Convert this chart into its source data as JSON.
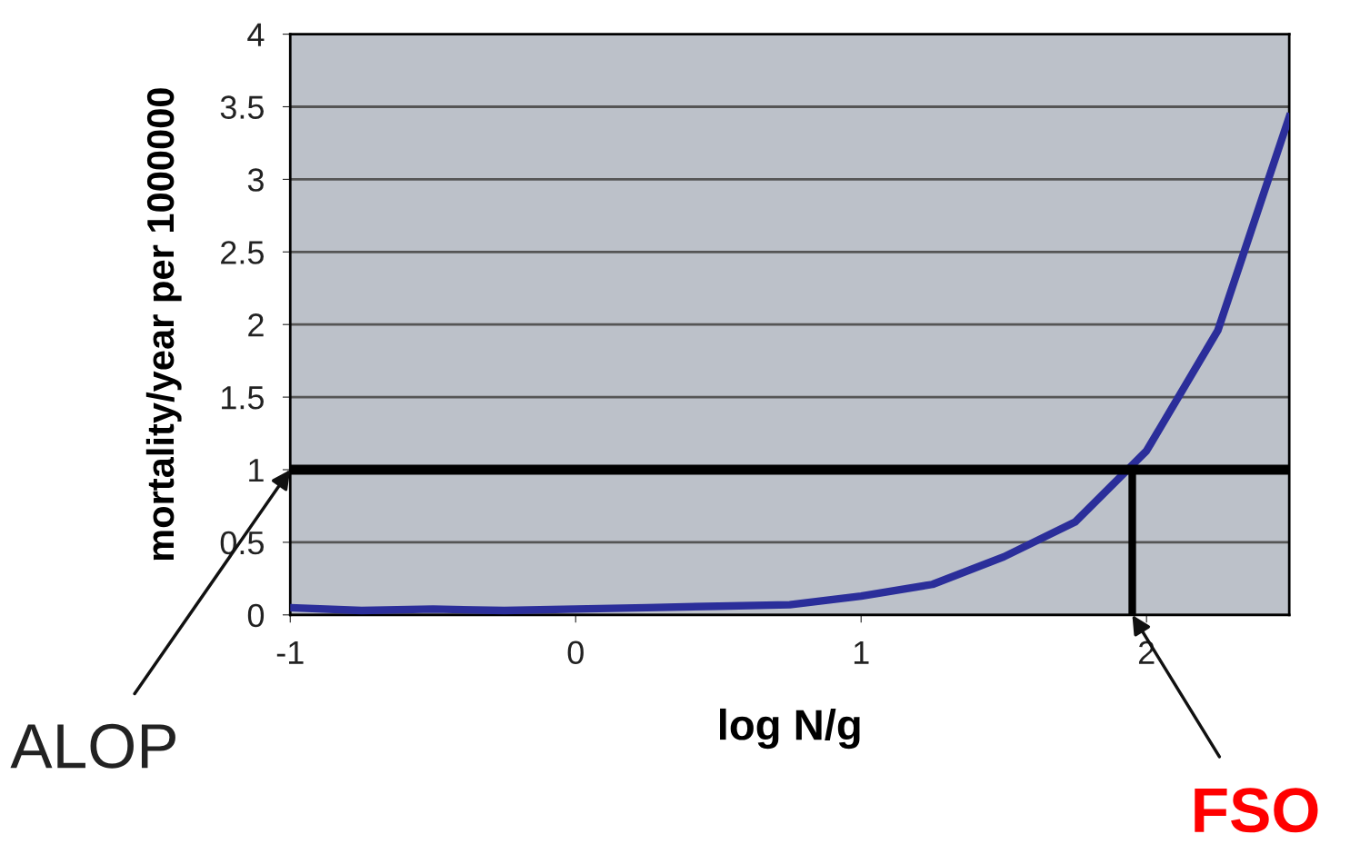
{
  "chart_data": {
    "type": "line",
    "xlabel": "log N/g",
    "ylabel": "mortality/year per 1000000",
    "xlim": [
      -1,
      2.5
    ],
    "ylim": [
      0,
      4
    ],
    "xticks": [
      -1,
      0,
      1,
      2
    ],
    "yticks": [
      0,
      0.5,
      1,
      1.5,
      2,
      2.5,
      3,
      3.5,
      4
    ],
    "grid": "y",
    "series": [
      {
        "color": "#2b2e9a",
        "x": [
          -1,
          -0.75,
          -0.5,
          -0.25,
          0,
          0.25,
          0.5,
          0.75,
          1,
          1.25,
          1.5,
          1.75,
          2,
          2.25,
          2.5
        ],
        "values": [
          0.05,
          0.03,
          0.04,
          0.03,
          0.04,
          0.05,
          0.06,
          0.07,
          0.13,
          0.21,
          0.4,
          0.64,
          1.13,
          1.96,
          3.43
        ]
      },
      {
        "color": "#000000",
        "x": [
          1.95,
          1.95
        ],
        "values": [
          0,
          1
        ]
      }
    ],
    "ref_lines": [
      {
        "axis": "y",
        "value": 1,
        "color": "#000000"
      }
    ],
    "annotations": [
      {
        "text": "ALOP",
        "x": -1,
        "y": 1
      },
      {
        "text": "FSO",
        "x": 1.95,
        "y": 0
      }
    ]
  }
}
